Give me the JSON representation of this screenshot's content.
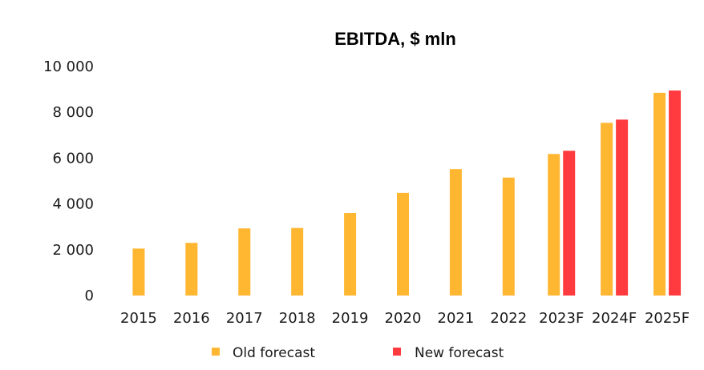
{
  "chart_data": {
    "type": "bar",
    "title": "EBITDA, $ mln",
    "xlabel": "",
    "ylabel": "",
    "categories": [
      "2015",
      "2016",
      "2017",
      "2018",
      "2019",
      "2020",
      "2021",
      "2022",
      "2023F",
      "2024F",
      "2025F"
    ],
    "series": [
      {
        "name": "Old forecast",
        "color": "#FFB732",
        "values": [
          2050,
          2300,
          2930,
          2950,
          3600,
          4480,
          5520,
          5150,
          6180,
          7540,
          8850
        ]
      },
      {
        "name": "New forecast",
        "color": "#FF3B3F",
        "values": [
          null,
          null,
          null,
          null,
          null,
          null,
          null,
          null,
          6320,
          7680,
          8950
        ]
      }
    ],
    "ylim": [
      0,
      10000
    ],
    "yticks": [
      0,
      2000,
      4000,
      6000,
      8000,
      10000
    ],
    "ytick_labels": [
      "0",
      "2 000",
      "4 000",
      "6 000",
      "8 000",
      "10 000"
    ],
    "grid": false,
    "legend_position": "bottom"
  }
}
